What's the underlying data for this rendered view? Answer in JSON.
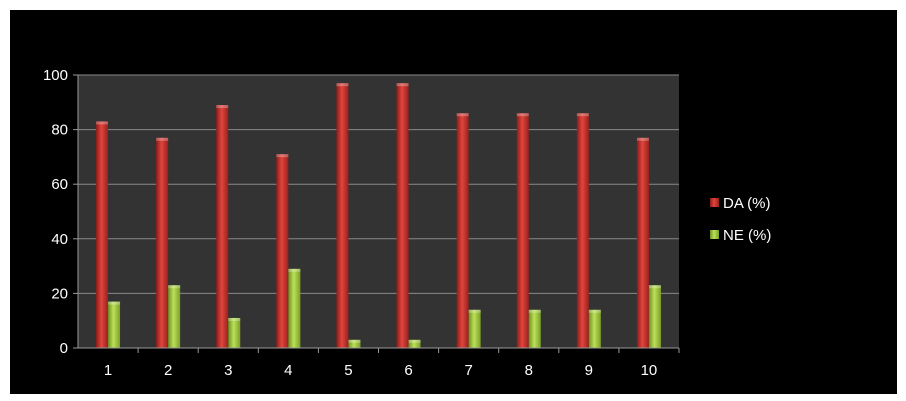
{
  "chart_data": {
    "type": "bar",
    "title": "",
    "xlabel": "",
    "ylabel": "",
    "categories": [
      "1",
      "2",
      "3",
      "4",
      "5",
      "6",
      "7",
      "8",
      "9",
      "10"
    ],
    "series": [
      {
        "name": "DA (%)",
        "color": "#c8302b",
        "values": [
          83,
          77,
          89,
          71,
          97,
          97,
          86,
          86,
          86,
          77
        ]
      },
      {
        "name": "NE (%)",
        "color": "#9fc33a",
        "values": [
          17,
          23,
          11,
          29,
          3,
          3,
          14,
          14,
          14,
          23
        ]
      }
    ],
    "ylim": [
      0,
      100
    ],
    "yticks": [
      0,
      20,
      40,
      60,
      80,
      100
    ],
    "grid": true,
    "legend_position": "right",
    "plot_background": "#333333",
    "background": "#000000",
    "gridline_color": "#8a8a8a"
  }
}
